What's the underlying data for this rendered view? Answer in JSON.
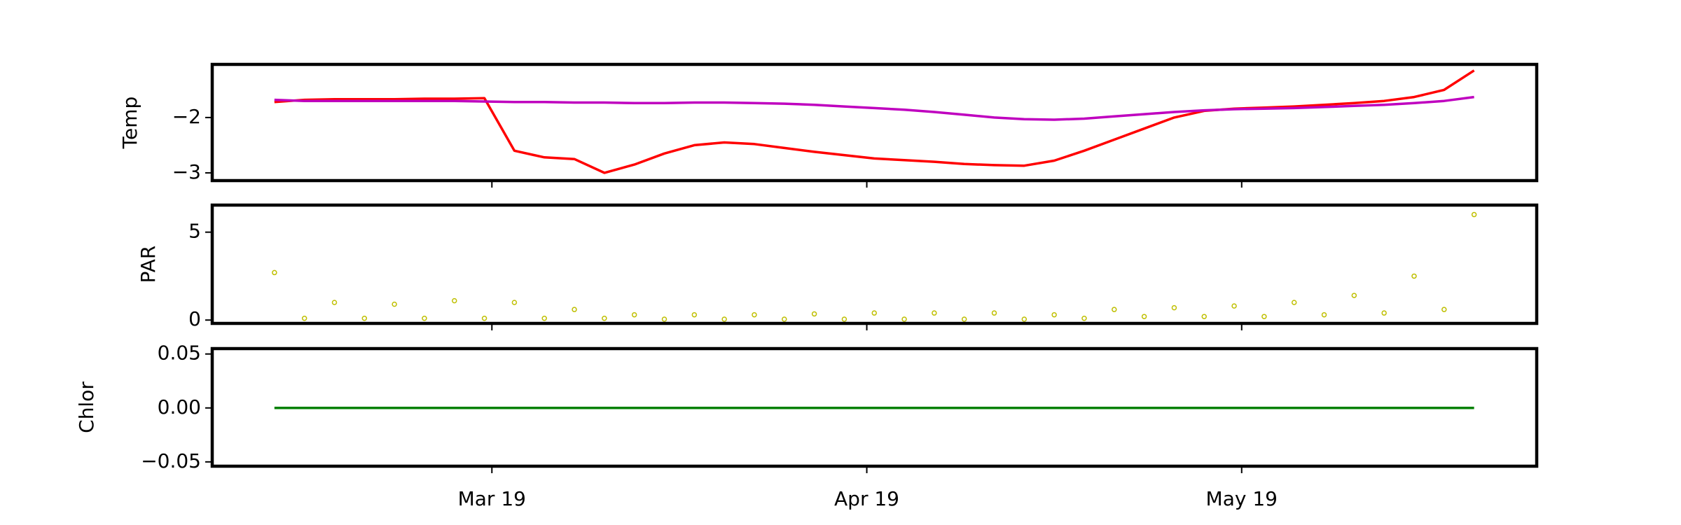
{
  "chart_data": [
    {
      "type": "line",
      "ylabel": "Temp",
      "x": [
        2.42,
        2.5,
        2.58,
        2.66,
        2.74,
        2.82,
        2.9,
        2.98,
        3.06,
        3.14,
        3.22,
        3.3,
        3.38,
        3.46,
        3.54,
        3.62,
        3.7,
        3.78,
        3.86,
        3.94,
        4.02,
        4.1,
        4.18,
        4.26,
        4.34,
        4.42,
        4.5,
        4.58,
        4.66,
        4.74,
        4.82,
        4.9,
        4.98,
        5.06,
        5.14,
        5.22,
        5.3,
        5.38,
        5.46,
        5.54,
        5.62
      ],
      "series": [
        {
          "color": "#ff0000",
          "values": [
            -1.72,
            -1.68,
            -1.67,
            -1.67,
            -1.67,
            -1.66,
            -1.66,
            -1.65,
            -2.6,
            -2.72,
            -2.75,
            -3.0,
            -2.85,
            -2.65,
            -2.5,
            -2.45,
            -2.48,
            -2.55,
            -2.62,
            -2.68,
            -2.74,
            -2.77,
            -2.8,
            -2.84,
            -2.86,
            -2.87,
            -2.78,
            -2.6,
            -2.4,
            -2.2,
            -2.0,
            -1.88,
            -1.84,
            -1.82,
            -1.8,
            -1.77,
            -1.74,
            -1.7,
            -1.63,
            -1.5,
            -1.15
          ]
        },
        {
          "color": "#bf00bf",
          "values": [
            -1.68,
            -1.7,
            -1.7,
            -1.7,
            -1.7,
            -1.7,
            -1.7,
            -1.71,
            -1.72,
            -1.72,
            -1.73,
            -1.73,
            -1.74,
            -1.74,
            -1.73,
            -1.73,
            -1.74,
            -1.75,
            -1.77,
            -1.8,
            -1.83,
            -1.86,
            -1.9,
            -1.95,
            -2.0,
            -2.03,
            -2.04,
            -2.02,
            -1.98,
            -1.94,
            -1.9,
            -1.87,
            -1.85,
            -1.84,
            -1.83,
            -1.81,
            -1.79,
            -1.77,
            -1.74,
            -1.7,
            -1.63
          ]
        }
      ],
      "xlim": [
        2.254,
        5.787
      ],
      "ylim": [
        -3.14,
        -1.04
      ],
      "yticks": [
        {
          "value": -3,
          "label": "−3"
        },
        {
          "value": -2,
          "label": "−2"
        }
      ]
    },
    {
      "type": "scatter",
      "ylabel": "PAR",
      "x": [
        2.42,
        2.5,
        2.58,
        2.66,
        2.74,
        2.82,
        2.9,
        2.98,
        3.06,
        3.14,
        3.22,
        3.3,
        3.38,
        3.46,
        3.54,
        3.62,
        3.7,
        3.78,
        3.86,
        3.94,
        4.02,
        4.1,
        4.18,
        4.26,
        4.34,
        4.42,
        4.5,
        4.58,
        4.66,
        4.74,
        4.82,
        4.9,
        4.98,
        5.06,
        5.14,
        5.22,
        5.3,
        5.38,
        5.46,
        5.54,
        5.62
      ],
      "color": "#bfbf00",
      "values": [
        2.7,
        0.1,
        1.0,
        0.1,
        0.9,
        0.1,
        1.1,
        0.1,
        1.0,
        0.1,
        0.6,
        0.1,
        0.3,
        0.05,
        0.3,
        0.05,
        0.3,
        0.05,
        0.35,
        0.05,
        0.4,
        0.05,
        0.4,
        0.05,
        0.4,
        0.05,
        0.3,
        0.1,
        0.6,
        0.2,
        0.7,
        0.2,
        0.8,
        0.2,
        1.0,
        0.3,
        1.4,
        0.4,
        2.5,
        0.6,
        6.0
      ],
      "xlim": [
        2.254,
        5.787
      ],
      "ylim": [
        -0.19,
        6.54
      ],
      "yticks": [
        0,
        5
      ]
    },
    {
      "type": "line",
      "ylabel": "Chlor",
      "x": [
        2.42,
        2.5,
        2.58,
        2.66,
        2.74,
        2.82,
        2.9,
        2.98,
        3.06,
        3.14,
        3.22,
        3.3,
        3.38,
        3.46,
        3.54,
        3.62,
        3.7,
        3.78,
        3.86,
        3.94,
        4.02,
        4.1,
        4.18,
        4.26,
        4.34,
        4.42,
        4.5,
        4.58,
        4.66,
        4.74,
        4.82,
        4.9,
        4.98,
        5.06,
        5.14,
        5.22,
        5.3,
        5.38,
        5.46,
        5.54,
        5.62
      ],
      "series": [
        {
          "color": "#008000",
          "values": [
            0,
            0,
            0,
            0,
            0,
            0,
            0,
            0,
            0,
            0,
            0,
            0,
            0,
            0,
            0,
            0,
            0,
            0,
            0,
            0,
            0,
            0,
            0,
            0,
            0,
            0,
            0,
            0,
            0,
            0,
            0,
            0,
            0,
            0,
            0,
            0,
            0,
            0,
            0,
            0,
            0
          ]
        }
      ],
      "xlim": [
        2.254,
        5.787
      ],
      "ylim": [
        -0.054,
        0.055
      ],
      "yticks": [
        {
          "value": -0.05,
          "label": "−0.05"
        },
        {
          "value": 0,
          "label": "0.00"
        },
        0.05
      ],
      "xticks": [
        {
          "value": 3,
          "label": "Mar 19"
        },
        {
          "value": 4,
          "label": "Apr 19"
        },
        {
          "value": 5,
          "label": "May 19"
        }
      ]
    }
  ]
}
